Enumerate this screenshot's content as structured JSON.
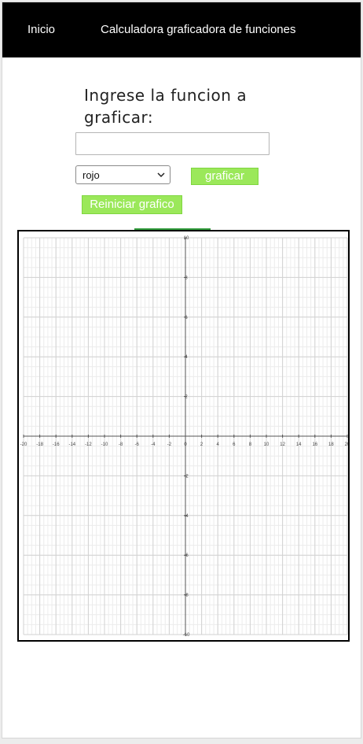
{
  "nav": {
    "home": "Inicio",
    "title": "Calculadora graficadora de funciones"
  },
  "form": {
    "prompt": "Ingrese la funcion a graficar:",
    "function_value": "",
    "color_selected": "rojo",
    "graph_button": "graficar",
    "reset_button": "Reiniciar grafico"
  },
  "graph": {
    "x_ticks": [
      "-20",
      "-18",
      "-16",
      "-14",
      "-12",
      "-10",
      "-8",
      "-6",
      "-4",
      "-2",
      "0",
      "2",
      "4",
      "6",
      "8",
      "10",
      "12",
      "14",
      "16",
      "18",
      "20"
    ],
    "y_ticks": [
      "10",
      "8",
      "6",
      "4",
      "2",
      "-2",
      "-4",
      "-6",
      "-8",
      "-10"
    ],
    "xlim": [
      -20,
      20
    ],
    "ylim": [
      -10,
      10
    ]
  },
  "colors": {
    "navbar": "#000000",
    "button": "#9be85a",
    "accent_strip": "#2f9a3a"
  }
}
